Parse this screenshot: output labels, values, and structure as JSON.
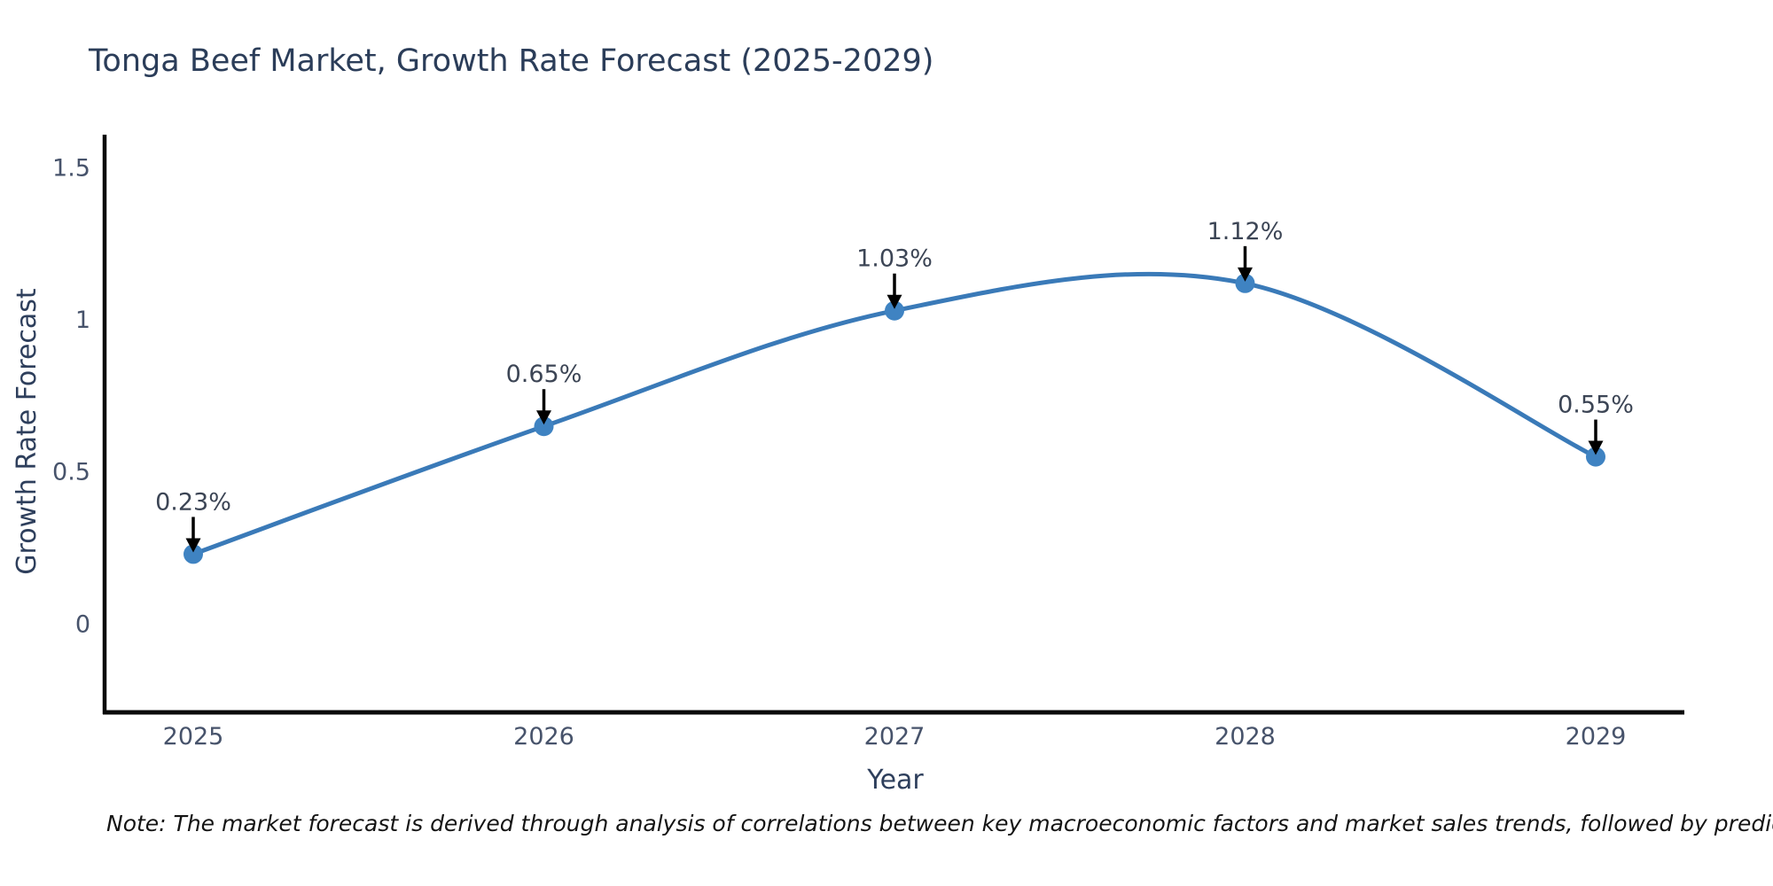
{
  "title": "Tonga Beef Market, Growth Rate Forecast (2025-2029)",
  "note": "Note: The market forecast is derived through analysis of correlations between key macroeconomic factors and market sales trends, followed by predictive modeling to project future sales",
  "chart_data": {
    "type": "line",
    "line_shape": "spline",
    "x": [
      "2025",
      "2026",
      "2027",
      "2028",
      "2029"
    ],
    "y": [
      0.23,
      0.65,
      1.03,
      1.12,
      0.55
    ],
    "point_labels": [
      "0.23%",
      "0.65%",
      "1.03%",
      "1.12%",
      "0.55%"
    ],
    "title": "Tonga Beef Market, Growth Rate Forecast (2025-2029)",
    "xlabel": "Year",
    "ylabel": "Growth Rate Forecast",
    "yticks": [
      0,
      0.5,
      1,
      1.5
    ],
    "ytick_labels": [
      "0",
      "0.5",
      "1",
      "1.5"
    ],
    "ylim": [
      -0.29,
      1.6
    ],
    "grid": false,
    "legend": "none",
    "annotations_have_arrows": true,
    "colors": {
      "line": "#3a7ab8",
      "marker": "#3f83c2",
      "axis_line": "#0a0a0a",
      "title_text": "#2b3d59",
      "tick_text": "#47536b",
      "annotation_text": "#3c4555",
      "arrow": "#000000",
      "note_text": "#141414",
      "background": "#ffffff"
    }
  }
}
